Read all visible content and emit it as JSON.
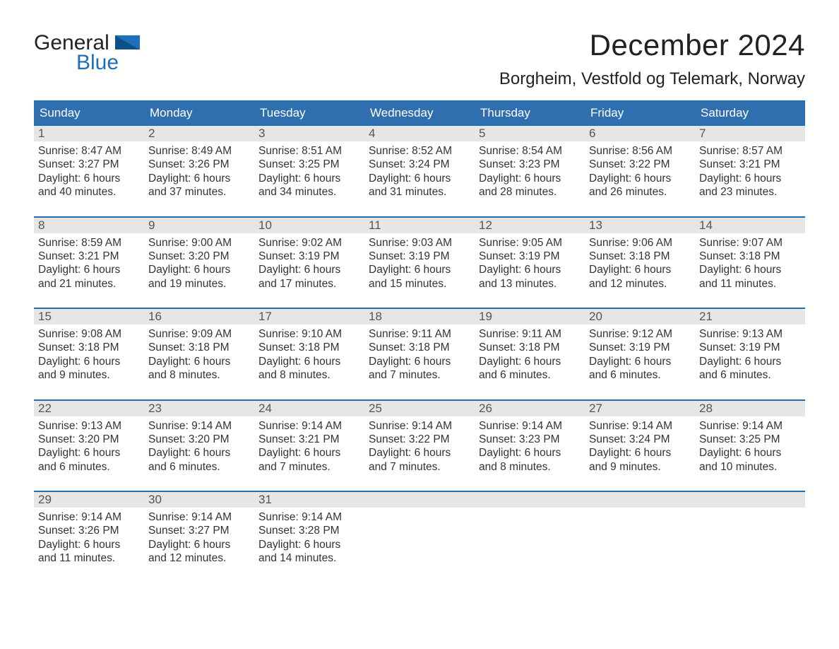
{
  "colors": {
    "header_blue": "#2f6fb0",
    "accent_blue": "#1d6fb8",
    "row_gray": "#e6e6e6",
    "background": "#ffffff",
    "text": "#222222",
    "logo_text": "#222222",
    "logo_blue": "#1d6fb8"
  },
  "logo": {
    "line1": "General",
    "line2": "Blue"
  },
  "title": {
    "month": "December 2024",
    "location": "Borgheim, Vestfold og Telemark, Norway"
  },
  "day_labels": [
    "Sunday",
    "Monday",
    "Tuesday",
    "Wednesday",
    "Thursday",
    "Friday",
    "Saturday"
  ],
  "labels": {
    "sunrise": "Sunrise: ",
    "sunset": "Sunset: ",
    "daylight": "Daylight: "
  },
  "weeks": [
    [
      {
        "num": "1",
        "sunrise": "8:47 AM",
        "sunset": "3:27 PM",
        "daylight": "6 hours and 40 minutes."
      },
      {
        "num": "2",
        "sunrise": "8:49 AM",
        "sunset": "3:26 PM",
        "daylight": "6 hours and 37 minutes."
      },
      {
        "num": "3",
        "sunrise": "8:51 AM",
        "sunset": "3:25 PM",
        "daylight": "6 hours and 34 minutes."
      },
      {
        "num": "4",
        "sunrise": "8:52 AM",
        "sunset": "3:24 PM",
        "daylight": "6 hours and 31 minutes."
      },
      {
        "num": "5",
        "sunrise": "8:54 AM",
        "sunset": "3:23 PM",
        "daylight": "6 hours and 28 minutes."
      },
      {
        "num": "6",
        "sunrise": "8:56 AM",
        "sunset": "3:22 PM",
        "daylight": "6 hours and 26 minutes."
      },
      {
        "num": "7",
        "sunrise": "8:57 AM",
        "sunset": "3:21 PM",
        "daylight": "6 hours and 23 minutes."
      }
    ],
    [
      {
        "num": "8",
        "sunrise": "8:59 AM",
        "sunset": "3:21 PM",
        "daylight": "6 hours and 21 minutes."
      },
      {
        "num": "9",
        "sunrise": "9:00 AM",
        "sunset": "3:20 PM",
        "daylight": "6 hours and 19 minutes."
      },
      {
        "num": "10",
        "sunrise": "9:02 AM",
        "sunset": "3:19 PM",
        "daylight": "6 hours and 17 minutes."
      },
      {
        "num": "11",
        "sunrise": "9:03 AM",
        "sunset": "3:19 PM",
        "daylight": "6 hours and 15 minutes."
      },
      {
        "num": "12",
        "sunrise": "9:05 AM",
        "sunset": "3:19 PM",
        "daylight": "6 hours and 13 minutes."
      },
      {
        "num": "13",
        "sunrise": "9:06 AM",
        "sunset": "3:18 PM",
        "daylight": "6 hours and 12 minutes."
      },
      {
        "num": "14",
        "sunrise": "9:07 AM",
        "sunset": "3:18 PM",
        "daylight": "6 hours and 11 minutes."
      }
    ],
    [
      {
        "num": "15",
        "sunrise": "9:08 AM",
        "sunset": "3:18 PM",
        "daylight": "6 hours and 9 minutes."
      },
      {
        "num": "16",
        "sunrise": "9:09 AM",
        "sunset": "3:18 PM",
        "daylight": "6 hours and 8 minutes."
      },
      {
        "num": "17",
        "sunrise": "9:10 AM",
        "sunset": "3:18 PM",
        "daylight": "6 hours and 8 minutes."
      },
      {
        "num": "18",
        "sunrise": "9:11 AM",
        "sunset": "3:18 PM",
        "daylight": "6 hours and 7 minutes."
      },
      {
        "num": "19",
        "sunrise": "9:11 AM",
        "sunset": "3:18 PM",
        "daylight": "6 hours and 6 minutes."
      },
      {
        "num": "20",
        "sunrise": "9:12 AM",
        "sunset": "3:19 PM",
        "daylight": "6 hours and 6 minutes."
      },
      {
        "num": "21",
        "sunrise": "9:13 AM",
        "sunset": "3:19 PM",
        "daylight": "6 hours and 6 minutes."
      }
    ],
    [
      {
        "num": "22",
        "sunrise": "9:13 AM",
        "sunset": "3:20 PM",
        "daylight": "6 hours and 6 minutes."
      },
      {
        "num": "23",
        "sunrise": "9:14 AM",
        "sunset": "3:20 PM",
        "daylight": "6 hours and 6 minutes."
      },
      {
        "num": "24",
        "sunrise": "9:14 AM",
        "sunset": "3:21 PM",
        "daylight": "6 hours and 7 minutes."
      },
      {
        "num": "25",
        "sunrise": "9:14 AM",
        "sunset": "3:22 PM",
        "daylight": "6 hours and 7 minutes."
      },
      {
        "num": "26",
        "sunrise": "9:14 AM",
        "sunset": "3:23 PM",
        "daylight": "6 hours and 8 minutes."
      },
      {
        "num": "27",
        "sunrise": "9:14 AM",
        "sunset": "3:24 PM",
        "daylight": "6 hours and 9 minutes."
      },
      {
        "num": "28",
        "sunrise": "9:14 AM",
        "sunset": "3:25 PM",
        "daylight": "6 hours and 10 minutes."
      }
    ],
    [
      {
        "num": "29",
        "sunrise": "9:14 AM",
        "sunset": "3:26 PM",
        "daylight": "6 hours and 11 minutes."
      },
      {
        "num": "30",
        "sunrise": "9:14 AM",
        "sunset": "3:27 PM",
        "daylight": "6 hours and 12 minutes."
      },
      {
        "num": "31",
        "sunrise": "9:14 AM",
        "sunset": "3:28 PM",
        "daylight": "6 hours and 14 minutes."
      },
      {
        "empty": true
      },
      {
        "empty": true
      },
      {
        "empty": true
      },
      {
        "empty": true
      }
    ]
  ]
}
